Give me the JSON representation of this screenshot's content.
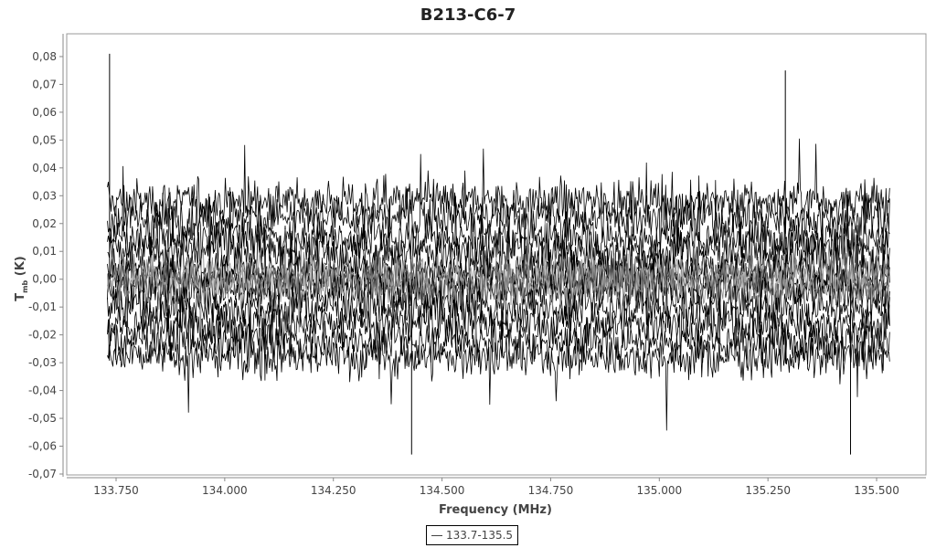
{
  "chart_data": {
    "type": "line",
    "title": "B213-C6-7",
    "xlabel": "Frequency (MHz)",
    "ylabel": "T_mb (K)",
    "ylabel_main": "T",
    "ylabel_sub": "mb",
    "ylabel_unit": "(K)",
    "xlim": [
      133.68,
      135.6
    ],
    "ylim": [
      -0.072,
      0.088
    ],
    "x_ticks": [
      "133.750",
      "134.000",
      "134.250",
      "134.500",
      "134.750",
      "135.000",
      "135.250",
      "135.500"
    ],
    "x_tick_values": [
      133.75,
      134.0,
      134.25,
      134.5,
      134.75,
      135.0,
      135.25,
      135.5
    ],
    "y_ticks": [
      "0,08",
      "0,07",
      "0,06",
      "0,05",
      "0,04",
      "0,03",
      "0,02",
      "0,01",
      "0,00",
      "-0,01",
      "-0,02",
      "-0,03",
      "-0,04",
      "-0,05",
      "-0,06",
      "-0,07"
    ],
    "y_tick_values": [
      0.08,
      0.07,
      0.06,
      0.05,
      0.04,
      0.03,
      0.02,
      0.01,
      0,
      -0.01,
      -0.02,
      -0.03,
      -0.04,
      -0.05,
      -0.06,
      -0.07
    ],
    "series": [
      {
        "name": "133.7-135.5",
        "x_range": [
          133.73,
          135.53
        ],
        "y_observed_min": -0.063,
        "y_observed_max": 0.081,
        "description_color": "#000000"
      }
    ],
    "legend_position": "bottom-center",
    "grid": false
  }
}
